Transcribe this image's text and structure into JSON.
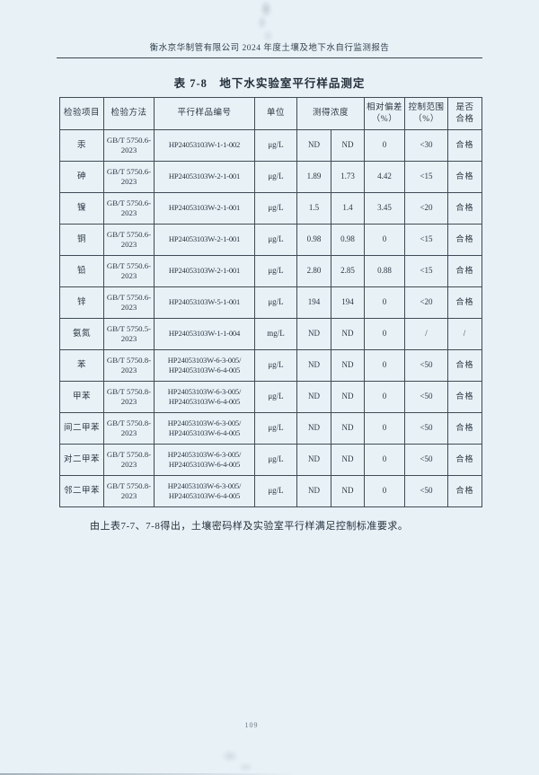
{
  "header": {
    "title": "衡水京华制管有限公司 2024 年度土壤及地下水自行监测报告"
  },
  "table": {
    "title": "表 7-8　地下水实验室平行样品测定",
    "columns": [
      "检验项目",
      "检验方法",
      "平行样品编号",
      "单位",
      "测得浓度",
      "相对偏差\n（%）",
      "控制范围\n（%）",
      "是否\n合格"
    ],
    "rows": [
      {
        "item": "汞",
        "method": "GB/T 5750.6-\n2023",
        "sample_id": "HP24053103W-1-1-002",
        "unit": "μg/L",
        "value1": "ND",
        "value2": "ND",
        "deviation": "0",
        "control_range": "<30",
        "qualified": "合格"
      },
      {
        "item": "砷",
        "method": "GB/T 5750.6-\n2023",
        "sample_id": "HP24053103W-2-1-001",
        "unit": "μg/L",
        "value1": "1.89",
        "value2": "1.73",
        "deviation": "4.42",
        "control_range": "<15",
        "qualified": "合格"
      },
      {
        "item": "镍",
        "method": "GB/T 5750.6-\n2023",
        "sample_id": "HP24053103W-2-1-001",
        "unit": "μg/L",
        "value1": "1.5",
        "value2": "1.4",
        "deviation": "3.45",
        "control_range": "<20",
        "qualified": "合格"
      },
      {
        "item": "铜",
        "method": "GB/T 5750.6-\n2023",
        "sample_id": "HP24053103W-2-1-001",
        "unit": "μg/L",
        "value1": "0.98",
        "value2": "0.98",
        "deviation": "0",
        "control_range": "<15",
        "qualified": "合格"
      },
      {
        "item": "铅",
        "method": "GB/T 5750.6-\n2023",
        "sample_id": "HP24053103W-2-1-001",
        "unit": "μg/L",
        "value1": "2.80",
        "value2": "2.85",
        "deviation": "0.88",
        "control_range": "<15",
        "qualified": "合格"
      },
      {
        "item": "锌",
        "method": "GB/T 5750.6-\n2023",
        "sample_id": "HP24053103W-5-1-001",
        "unit": "μg/L",
        "value1": "194",
        "value2": "194",
        "deviation": "0",
        "control_range": "<20",
        "qualified": "合格"
      },
      {
        "item": "氨氮",
        "method": "GB/T 5750.5-\n2023",
        "sample_id": "HP24053103W-1-1-004",
        "unit": "mg/L",
        "value1": "ND",
        "value2": "ND",
        "deviation": "0",
        "control_range": "/",
        "qualified": "/"
      },
      {
        "item": "苯",
        "method": "GB/T 5750.8-\n2023",
        "sample_id": "HP24053103W-6-3-005/\nHP24053103W-6-4-005",
        "unit": "μg/L",
        "value1": "ND",
        "value2": "ND",
        "deviation": "0",
        "control_range": "<50",
        "qualified": "合格"
      },
      {
        "item": "甲苯",
        "method": "GB/T 5750.8-\n2023",
        "sample_id": "HP24053103W-6-3-005/\nHP24053103W-6-4-005",
        "unit": "μg/L",
        "value1": "ND",
        "value2": "ND",
        "deviation": "0",
        "control_range": "<50",
        "qualified": "合格"
      },
      {
        "item": "间二甲苯",
        "method": "GB/T 5750.8-\n2023",
        "sample_id": "HP24053103W-6-3-005/\nHP24053103W-6-4-005",
        "unit": "μg/L",
        "value1": "ND",
        "value2": "ND",
        "deviation": "0",
        "control_range": "<50",
        "qualified": "合格"
      },
      {
        "item": "对二甲苯",
        "method": "GB/T 5750.8-\n2023",
        "sample_id": "HP24053103W-6-3-005/\nHP24053103W-6-4-005",
        "unit": "μg/L",
        "value1": "ND",
        "value2": "ND",
        "deviation": "0",
        "control_range": "<50",
        "qualified": "合格"
      },
      {
        "item": "邻二甲苯",
        "method": "GB/T 5750.8-\n2023",
        "sample_id": "HP24053103W-6-3-005/\nHP24053103W-6-4-005",
        "unit": "μg/L",
        "value1": "ND",
        "value2": "ND",
        "deviation": "0",
        "control_range": "<50",
        "qualified": "合格"
      }
    ]
  },
  "note": "由上表7-7、7-8得出，土壤密码样及实验室平行样满足控制标准要求。",
  "page_number": "109",
  "colors": {
    "page_bg": "#e8f1f6",
    "border": "#3f4b55",
    "text": "#2b3842",
    "muted": "#68787f"
  }
}
